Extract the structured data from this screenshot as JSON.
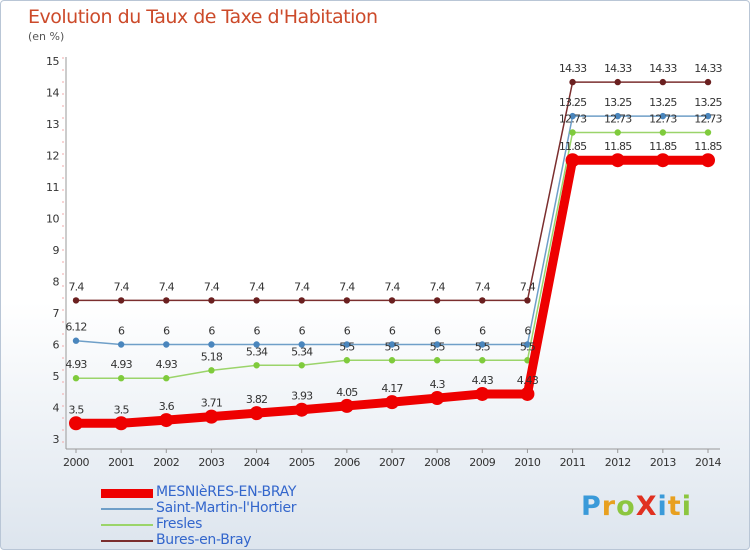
{
  "header": {
    "title": "Evolution du Taux de Taxe d'Habitation",
    "subtitle": "(en %)"
  },
  "logo": {
    "text": "ProXiti",
    "letters": [
      {
        "ch": "P",
        "color": "#3a9ad9"
      },
      {
        "ch": "r",
        "color": "#e8a020"
      },
      {
        "ch": "o",
        "color": "#8cc63f"
      },
      {
        "ch": "X",
        "color": "#e03020"
      },
      {
        "ch": "i",
        "color": "#3a9ad9"
      },
      {
        "ch": "t",
        "color": "#e8a020"
      },
      {
        "ch": "i",
        "color": "#8cc63f"
      }
    ]
  },
  "chart_data": {
    "type": "line",
    "title": "Evolution du Taux de Taxe d'Habitation",
    "subtitle": "(en %)",
    "xlabel": "",
    "ylabel": "",
    "x": [
      2000,
      2001,
      2002,
      2003,
      2004,
      2005,
      2006,
      2007,
      2008,
      2009,
      2010,
      2011,
      2012,
      2013,
      2014
    ],
    "ylim": [
      3,
      15
    ],
    "yticks": [
      3,
      4,
      5,
      6,
      7,
      8,
      9,
      10,
      11,
      12,
      13,
      14,
      15
    ],
    "grid": false,
    "legend_position": "bottom-left",
    "series": [
      {
        "name": "MESNIèRES-EN-BRAY",
        "color": "#ee0000",
        "labelColor": "#3366cc",
        "width": 9,
        "values": [
          3.5,
          3.5,
          3.6,
          3.71,
          3.82,
          3.93,
          4.05,
          4.17,
          4.3,
          4.43,
          4.43,
          11.85,
          11.85,
          11.85,
          11.85
        ],
        "labels": [
          "3.5",
          "3.5",
          "3.6",
          "3.71",
          "3.82",
          "3.93",
          "4.05",
          "4.17",
          "4.3",
          "4.43",
          "4.43",
          "11.85",
          "11.85",
          "11.85",
          "11.85"
        ]
      },
      {
        "name": "Saint-Martin-l'Hortier",
        "color": "#6f9fc8",
        "labelColor": "#3366cc",
        "width": 1.5,
        "values": [
          6.12,
          6,
          6,
          6,
          6,
          6,
          6,
          6,
          6,
          6,
          6,
          13.25,
          13.25,
          13.25,
          13.25
        ],
        "labels": [
          "6.12",
          "6",
          "6",
          "6",
          "6",
          "6",
          "6",
          "6",
          "6",
          "6",
          "6",
          "13.25",
          "13.25",
          "13.25",
          "13.25"
        ]
      },
      {
        "name": "Fresles",
        "color": "#9bd46a",
        "labelColor": "#3366cc",
        "width": 1.5,
        "values": [
          4.93,
          4.93,
          4.93,
          5.18,
          5.34,
          5.34,
          5.5,
          5.5,
          5.5,
          5.5,
          5.5,
          12.73,
          12.73,
          12.73,
          12.73
        ],
        "labels": [
          "4.93",
          "4.93",
          "4.93",
          "5.18",
          "5.34",
          "5.34",
          "5.5",
          "5.5",
          "5.5",
          "5.5",
          "5.5",
          "12.73",
          "12.73",
          "12.73",
          "12.73"
        ]
      },
      {
        "name": "Bures-en-Bray",
        "color": "#7b2e2e",
        "labelColor": "#3366cc",
        "width": 1.5,
        "values": [
          7.4,
          7.4,
          7.4,
          7.4,
          7.4,
          7.4,
          7.4,
          7.4,
          7.4,
          7.4,
          7.4,
          14.33,
          14.33,
          14.33,
          14.33
        ],
        "labels": [
          "7.4",
          "7.4",
          "7.4",
          "7.4",
          "7.4",
          "7.4",
          "7.4",
          "7.4",
          "7.4",
          "7.4",
          "7.4",
          "14.33",
          "14.33",
          "14.33",
          "14.33"
        ]
      }
    ]
  }
}
